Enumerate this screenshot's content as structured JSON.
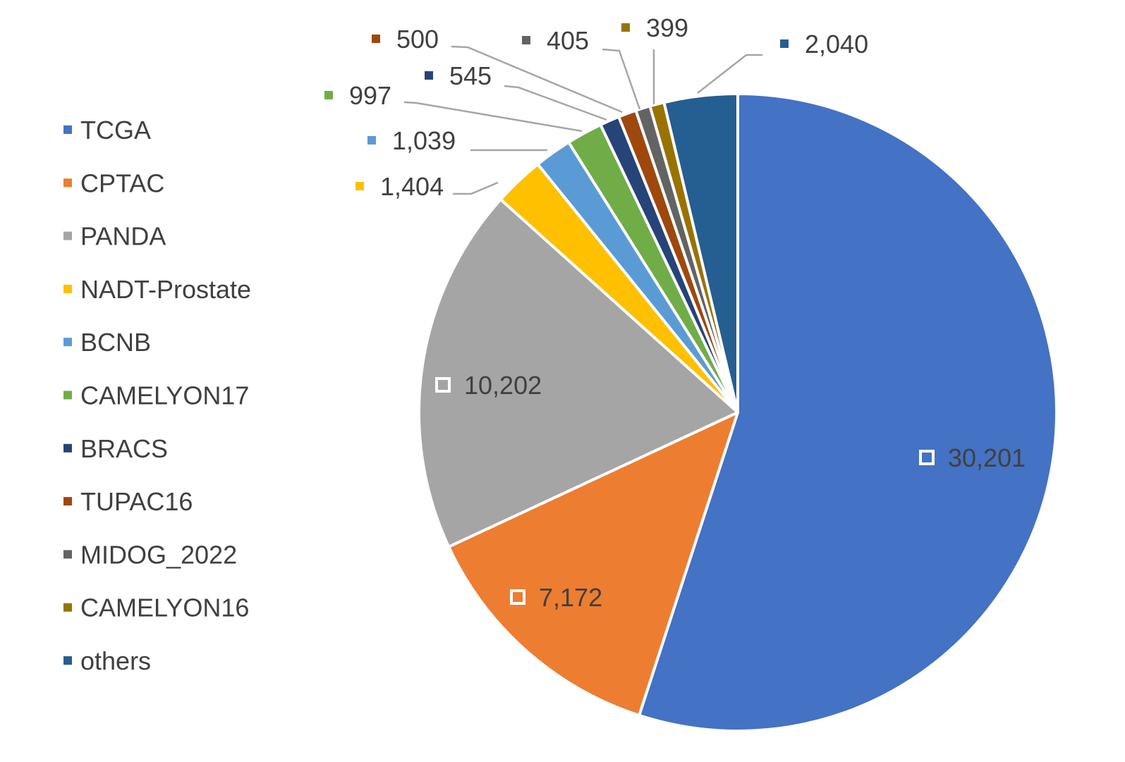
{
  "chart_data": {
    "type": "pie",
    "title": "",
    "legend_position": "left",
    "start_angle_deg": 0,
    "direction": "clockwise",
    "slices": [
      {
        "label": "TCGA",
        "value": 30201,
        "value_text": "30,201",
        "color": "#4472C4"
      },
      {
        "label": "CPTAC",
        "value": 7172,
        "value_text": "7,172",
        "color": "#ED7D31"
      },
      {
        "label": "PANDA",
        "value": 10202,
        "value_text": "10,202",
        "color": "#A5A5A5"
      },
      {
        "label": "NADT-Prostate",
        "value": 1404,
        "value_text": "1,404",
        "color": "#FFC000"
      },
      {
        "label": "BCNB",
        "value": 1039,
        "value_text": "1,039",
        "color": "#5B9BD5"
      },
      {
        "label": "CAMELYON17",
        "value": 997,
        "value_text": "997",
        "color": "#70AD47"
      },
      {
        "label": "BRACS",
        "value": 545,
        "value_text": "545",
        "color": "#264478"
      },
      {
        "label": "TUPAC16",
        "value": 500,
        "value_text": "500",
        "color": "#9E480E"
      },
      {
        "label": "MIDOG_2022",
        "value": 405,
        "value_text": "405",
        "color": "#636363"
      },
      {
        "label": "CAMELYON16",
        "value": 399,
        "value_text": "399",
        "color": "#997300"
      },
      {
        "label": "others",
        "value": 2040,
        "value_text": "2,040",
        "color": "#255E91"
      }
    ]
  }
}
